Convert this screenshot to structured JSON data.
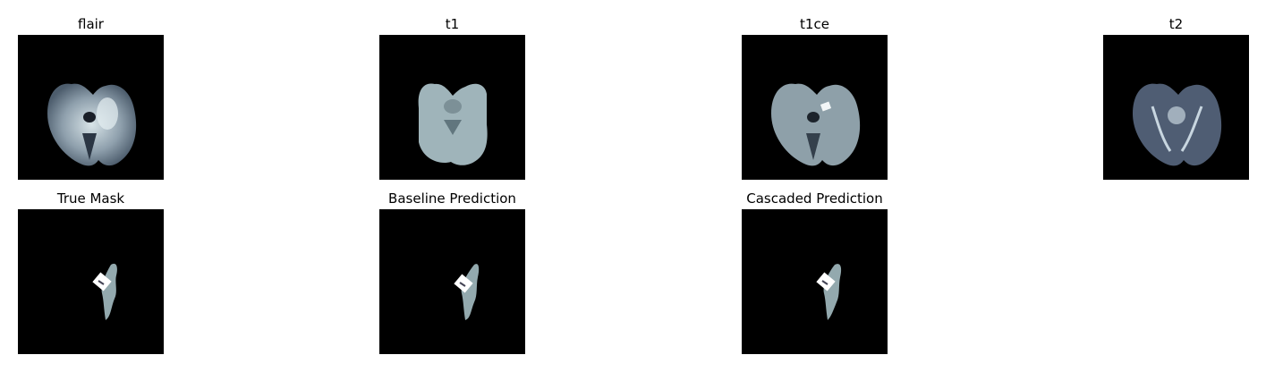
{
  "row1": {
    "flair": "flair",
    "t1": "t1",
    "t1ce": "t1ce",
    "t2": "t2"
  },
  "row2": {
    "true_mask": "True Mask",
    "baseline": "Baseline Prediction",
    "cascaded": "Cascaded Prediction"
  },
  "colors": {
    "background": "#000000",
    "tissue": "#9aabb4",
    "tissue_light": "#c7d6dc",
    "mask_region": "#93a9ae",
    "mask_core": "#ffffff"
  }
}
